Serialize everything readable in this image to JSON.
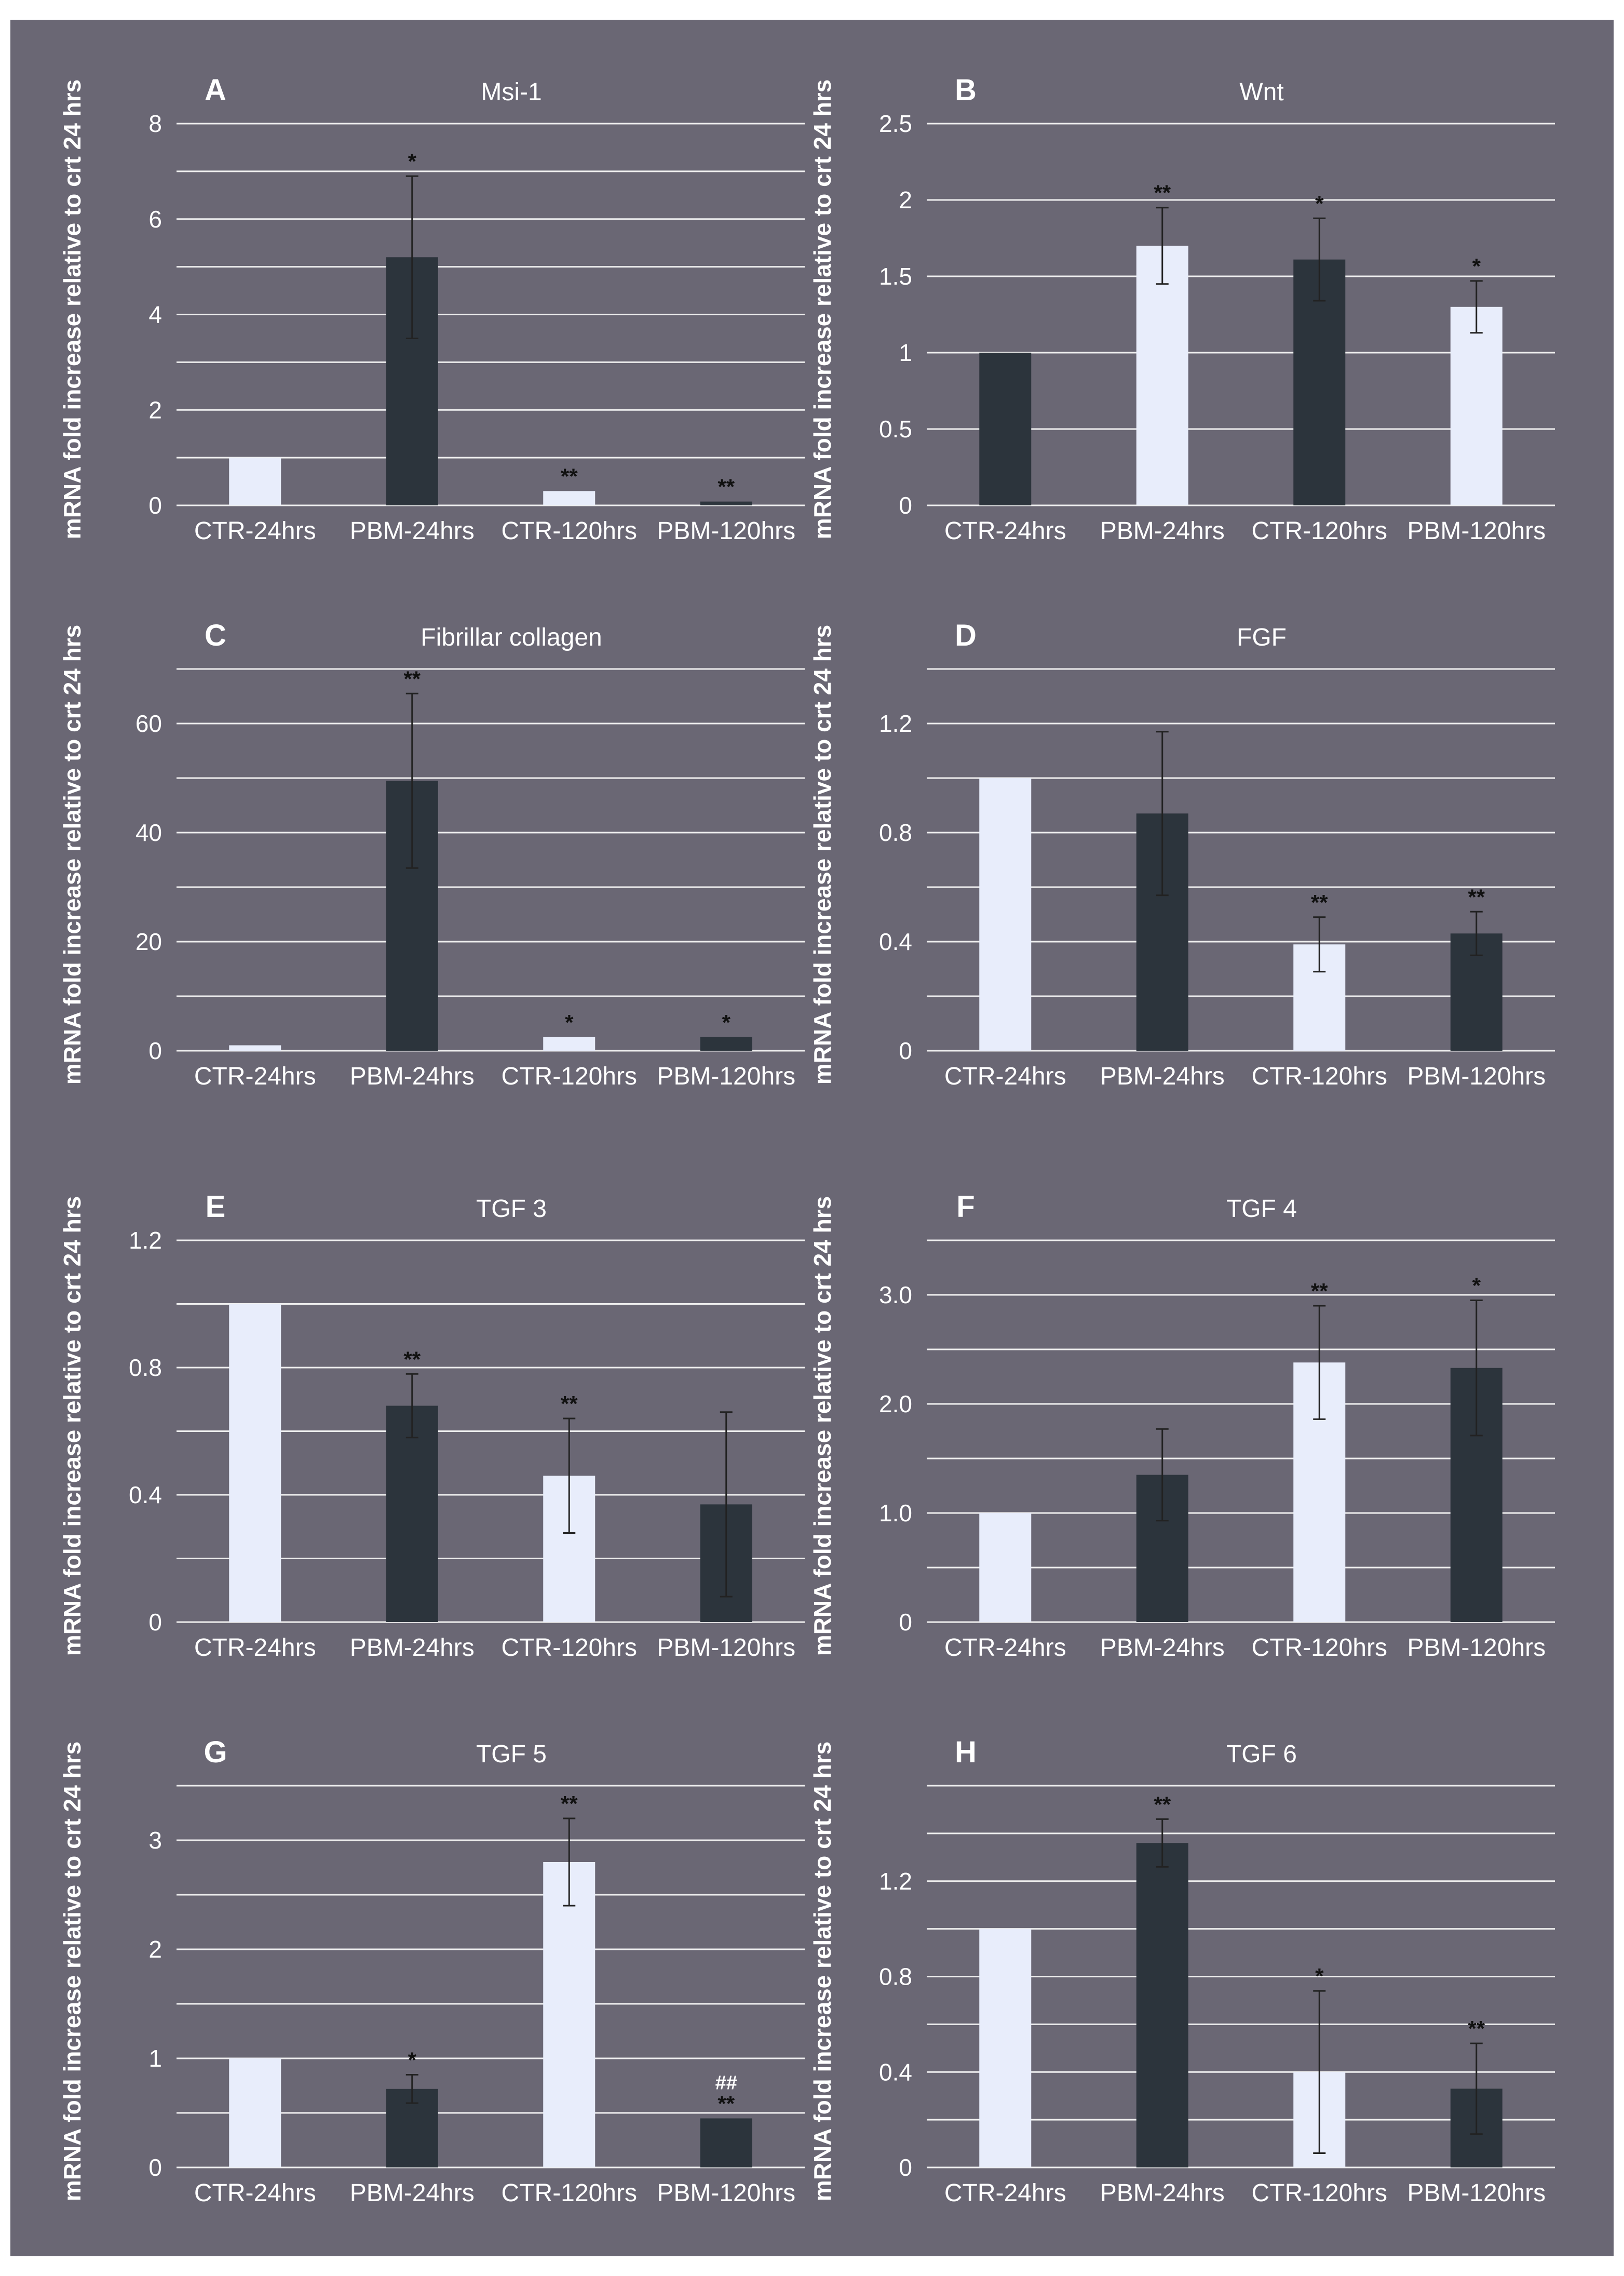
{
  "figure": {
    "ylabel": "mRNA fold increase relative to crt 24 hrs",
    "categories": [
      "CTR-24hrs",
      "PBM-24hrs",
      "CTR-120hrs",
      "PBM-120hrs"
    ],
    "colors": {
      "background": "#6a6774",
      "light_bar": "#e8edfb",
      "dark_bar": "#2c343c",
      "grid": "#eeeeee",
      "text": "#ffffff",
      "significance": "#111111"
    }
  },
  "chart_data": [
    {
      "panel": "A",
      "type": "bar",
      "title": "Msi-1",
      "ylabel": "mRNA fold increase relative to crt 24 hrs",
      "categories": [
        "CTR-24hrs",
        "PBM-24hrs",
        "CTR-120hrs",
        "PBM-120hrs"
      ],
      "values": [
        1.0,
        5.2,
        0.3,
        0.08
      ],
      "errors": [
        0.02,
        1.7,
        0.15,
        0.05
      ],
      "significance": [
        "",
        "*",
        "**",
        "**"
      ],
      "hash": [
        "",
        "",
        "",
        ""
      ],
      "bar_tone": [
        "light",
        "dark",
        "light",
        "dark"
      ],
      "ylim": [
        0,
        8
      ],
      "yticks": [
        "0",
        "2",
        "4",
        "6",
        "8"
      ],
      "ytick_values": [
        0,
        2,
        4,
        6,
        8
      ],
      "gridlines": [
        0,
        1,
        2,
        3,
        4,
        5,
        6,
        7,
        8
      ]
    },
    {
      "panel": "B",
      "type": "bar",
      "title": "Wnt",
      "ylabel": "mRNA fold increase relative to crt 24 hrs",
      "categories": [
        "CTR-24hrs",
        "PBM-24hrs",
        "CTR-120hrs",
        "PBM-120hrs"
      ],
      "values": [
        1.0,
        1.7,
        1.61,
        1.3
      ],
      "errors": [
        0.01,
        0.25,
        0.27,
        0.17
      ],
      "significance": [
        "",
        "**",
        "*",
        "*"
      ],
      "hash": [
        "",
        "",
        "",
        ""
      ],
      "bar_tone": [
        "dark",
        "light",
        "dark",
        "light"
      ],
      "ylim": [
        0,
        2.5
      ],
      "yticks": [
        "0",
        "0.5",
        "1",
        "1.5",
        "2",
        "2.5"
      ],
      "ytick_values": [
        0,
        0.5,
        1,
        1.5,
        2,
        2.5
      ],
      "gridlines": [
        0,
        0.5,
        1,
        1.5,
        2,
        2.5
      ]
    },
    {
      "panel": "C",
      "type": "bar",
      "title": "Fibrillar collagen",
      "ylabel": "mRNA fold increase relative to crt 24 hrs",
      "categories": [
        "CTR-24hrs",
        "PBM-24hrs",
        "CTR-120hrs",
        "PBM-120hrs"
      ],
      "values": [
        1.0,
        49.5,
        2.5,
        2.5
      ],
      "errors": [
        0.05,
        16,
        0.8,
        0.6
      ],
      "significance": [
        "",
        "**",
        "*",
        "*"
      ],
      "hash": [
        "",
        "",
        "",
        ""
      ],
      "bar_tone": [
        "light",
        "dark",
        "light",
        "dark"
      ],
      "ylim": [
        0,
        70
      ],
      "yticks": [
        "0",
        "20",
        "40",
        "60"
      ],
      "ytick_values": [
        0,
        20,
        40,
        60
      ],
      "gridlines": [
        0,
        10,
        20,
        30,
        40,
        50,
        60,
        70
      ]
    },
    {
      "panel": "D",
      "type": "bar",
      "title": "FGF",
      "ylabel": "mRNA fold increase relative to crt 24 hrs",
      "categories": [
        "CTR-24hrs",
        "PBM-24hrs",
        "CTR-120hrs",
        "PBM-120hrs"
      ],
      "values": [
        1.0,
        0.87,
        0.39,
        0.43
      ],
      "errors": [
        0.005,
        0.3,
        0.1,
        0.08
      ],
      "significance": [
        "",
        "",
        "**",
        "**"
      ],
      "hash": [
        "",
        "",
        "",
        ""
      ],
      "bar_tone": [
        "light",
        "dark",
        "light",
        "dark"
      ],
      "ylim": [
        0,
        1.4
      ],
      "yticks": [
        "0",
        "0.4",
        "0.8",
        "1.2"
      ],
      "ytick_values": [
        0,
        0.4,
        0.8,
        1.2
      ],
      "gridlines": [
        0,
        0.2,
        0.4,
        0.6,
        0.8,
        1.0,
        1.2,
        1.4
      ]
    },
    {
      "panel": "E",
      "type": "bar",
      "title": "TGF 3",
      "ylabel": "mRNA fold increase relative to crt 24 hrs",
      "categories": [
        "CTR-24hrs",
        "PBM-24hrs",
        "CTR-120hrs",
        "PBM-120hrs"
      ],
      "values": [
        1.0,
        0.68,
        0.46,
        0.37
      ],
      "errors": [
        0.005,
        0.1,
        0.18,
        0.29
      ],
      "significance": [
        "",
        "**",
        "**",
        ""
      ],
      "hash": [
        "",
        "",
        "",
        ""
      ],
      "bar_tone": [
        "light",
        "dark",
        "light",
        "dark"
      ],
      "ylim": [
        0,
        1.2
      ],
      "yticks": [
        "0",
        "0.4",
        "0.8",
        "1.2"
      ],
      "ytick_values": [
        0,
        0.4,
        0.8,
        1.2
      ],
      "gridlines": [
        0,
        0.2,
        0.4,
        0.6,
        0.8,
        1.0,
        1.2
      ]
    },
    {
      "panel": "F",
      "type": "bar",
      "title": "TGF 4",
      "ylabel": "mRNA fold increase relative to crt 24 hrs",
      "categories": [
        "CTR-24hrs",
        "PBM-24hrs",
        "CTR-120hrs",
        "PBM-120hrs"
      ],
      "values": [
        1.0,
        1.35,
        2.38,
        2.33
      ],
      "errors": [
        0.01,
        0.42,
        0.52,
        0.62
      ],
      "significance": [
        "",
        "",
        "**",
        "*"
      ],
      "hash": [
        "",
        "",
        "",
        ""
      ],
      "bar_tone": [
        "light",
        "dark",
        "light",
        "dark"
      ],
      "ylim": [
        0,
        3.5
      ],
      "yticks": [
        "0",
        "1.0",
        "2.0",
        "3.0"
      ],
      "ytick_values": [
        0,
        1,
        2,
        3
      ],
      "gridlines": [
        0,
        0.5,
        1.0,
        1.5,
        2.0,
        2.5,
        3.0,
        3.5
      ]
    },
    {
      "panel": "G",
      "type": "bar",
      "title": "TGF 5",
      "ylabel": "mRNA fold increase relative to crt 24 hrs",
      "categories": [
        "CTR-24hrs",
        "PBM-24hrs",
        "CTR-120hrs",
        "PBM-120hrs"
      ],
      "values": [
        1.0,
        0.72,
        2.8,
        0.45
      ],
      "errors": [
        0.01,
        0.13,
        0.4,
        0.06
      ],
      "significance": [
        "",
        "*",
        "**",
        "**"
      ],
      "hash": [
        "",
        "",
        "",
        "##"
      ],
      "bar_tone": [
        "light",
        "dark",
        "light",
        "dark"
      ],
      "ylim": [
        0,
        3.5
      ],
      "yticks": [
        "0",
        "1",
        "2",
        "3"
      ],
      "ytick_values": [
        0,
        1,
        2,
        3
      ],
      "gridlines": [
        0,
        0.5,
        1.0,
        1.5,
        2.0,
        2.5,
        3.0,
        3.5
      ]
    },
    {
      "panel": "H",
      "type": "bar",
      "title": "TGF 6",
      "ylabel": "mRNA fold increase relative to crt 24 hrs",
      "categories": [
        "CTR-24hrs",
        "PBM-24hrs",
        "CTR-120hrs",
        "PBM-120hrs"
      ],
      "values": [
        1.0,
        1.36,
        0.4,
        0.33
      ],
      "errors": [
        0.005,
        0.1,
        0.34,
        0.19
      ],
      "significance": [
        "",
        "**",
        "*",
        "**"
      ],
      "hash": [
        "",
        "",
        "",
        ""
      ],
      "bar_tone": [
        "light",
        "dark",
        "light",
        "dark"
      ],
      "ylim": [
        0,
        1.6
      ],
      "yticks": [
        "0",
        "0.4",
        "0.8",
        "1.2"
      ],
      "ytick_values": [
        0,
        0.4,
        0.8,
        1.2
      ],
      "gridlines": [
        0,
        0.2,
        0.4,
        0.6,
        0.8,
        1.0,
        1.2,
        1.4,
        1.6
      ]
    }
  ]
}
